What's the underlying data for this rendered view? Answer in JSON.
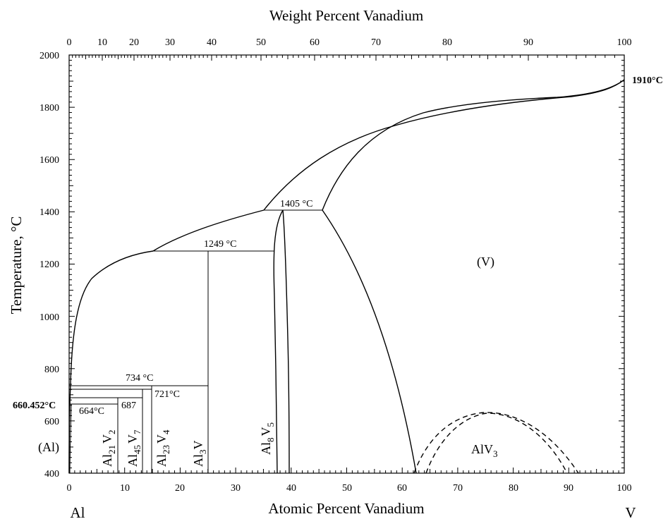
{
  "diagram": {
    "top_axis": {
      "title": "Weight Percent Vanadium",
      "ticks": [
        "0",
        "10",
        "20",
        "30",
        "40",
        "50",
        "60",
        "70",
        "80",
        "90",
        "100"
      ]
    },
    "bottom_axis": {
      "title": "Atomic Percent Vanadium",
      "ticks": [
        "0",
        "10",
        "20",
        "30",
        "40",
        "50",
        "60",
        "70",
        "80",
        "90",
        "100"
      ],
      "left_element": "Al",
      "right_element": "V"
    },
    "left_axis": {
      "title": "Temperature, °C",
      "ticks": [
        "400",
        "600",
        "800",
        "1000",
        "1200",
        "1400",
        "1600",
        "1800",
        "2000"
      ],
      "range": [
        400,
        2000
      ]
    },
    "temperatures": {
      "melting_al": "660.452°C",
      "melting_v": "1910°C",
      "peritectic_664": "664°C",
      "peritectic_687": "687",
      "peritectic_721": "721°C",
      "peritectic_734": "734 °C",
      "peritectic_1249": "1249 °C",
      "peritectic_1405": "1405 °C"
    },
    "phases": {
      "al_solid": "(Al)",
      "v_solid": "(V)",
      "al21v2": {
        "base": "Al",
        "sub1": "21",
        "mid": "V",
        "sub2": "2"
      },
      "al45v7": {
        "base": "Al",
        "sub1": "45",
        "mid": "V",
        "sub2": "7"
      },
      "al23v4": {
        "base": "Al",
        "sub1": "23",
        "mid": "V",
        "sub2": "4"
      },
      "al3v": {
        "base": "Al",
        "sub1": "3",
        "mid": "V"
      },
      "al8v5": {
        "base": "Al",
        "sub1": "8",
        "mid": "V",
        "sub2": "5"
      },
      "alv3": {
        "base": "AlV",
        "sub1": "3"
      }
    }
  }
}
